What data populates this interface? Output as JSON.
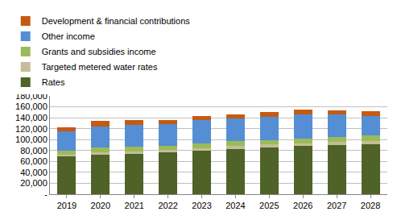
{
  "chart_data": {
    "type": "bar",
    "stacked": true,
    "grid": true,
    "legend": "top",
    "categories": [
      "2019",
      "2020",
      "2021",
      "2022",
      "2023",
      "2024",
      "2025",
      "2026",
      "2027",
      "2028"
    ],
    "series": [
      {
        "name": "Rates",
        "color": "#4f6228",
        "values": [
          69000,
          72000,
          74000,
          76000,
          80000,
          83000,
          86000,
          88000,
          90000,
          92000
        ]
      },
      {
        "name": "Targeted metered water rates",
        "color": "#c4bd97",
        "values": [
          4000,
          4200,
          4400,
          4600,
          4800,
          5000,
          5200,
          5400,
          5600,
          5800
        ]
      },
      {
        "name": "Grants and subsidies income",
        "color": "#9bbb59",
        "values": [
          6000,
          10000,
          8000,
          8500,
          8000,
          9000,
          8000,
          8500,
          9500,
          10000
        ]
      },
      {
        "name": "Other income",
        "color": "#558ed5",
        "values": [
          36000,
          38000,
          40000,
          39000,
          43000,
          42000,
          43000,
          44000,
          41000,
          36000
        ]
      },
      {
        "name": "Development & financial contributions",
        "color": "#c55a11",
        "values": [
          8000,
          10000,
          9000,
          8000,
          7000,
          7000,
          9000,
          9000,
          8000,
          8000
        ]
      }
    ],
    "ylim": [
      0,
      180000
    ],
    "yticks": [
      {
        "value": 0,
        "label": "-"
      },
      {
        "value": 20000,
        "label": "20,000"
      },
      {
        "value": 40000,
        "label": "40,000"
      },
      {
        "value": 60000,
        "label": "60,000"
      },
      {
        "value": 80000,
        "label": "80,000"
      },
      {
        "value": 100000,
        "label": "100,000"
      },
      {
        "value": 120000,
        "label": "120,000"
      },
      {
        "value": 140000,
        "label": "140,000"
      },
      {
        "value": 160000,
        "label": "160,000"
      },
      {
        "value": 180000,
        "label": "180,000"
      }
    ]
  }
}
